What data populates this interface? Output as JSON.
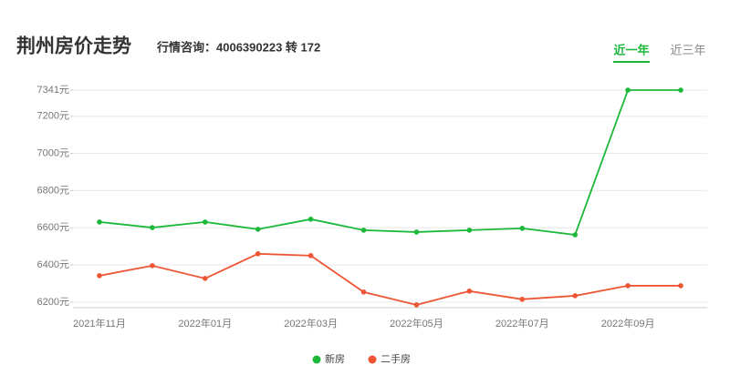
{
  "header": {
    "title": "荆州房价走势",
    "hotline": "行情咨询：4006390223 转 172"
  },
  "tabs": [
    "近一年",
    "近三年"
  ],
  "active_tab": 0,
  "chart_data": {
    "type": "line",
    "categories": [
      "2021年11月",
      null,
      "2022年01月",
      null,
      "2022年03月",
      null,
      "2022年05月",
      null,
      "2022年07月",
      null,
      "2022年09月",
      null
    ],
    "series": [
      {
        "name": "新房",
        "color": "#1cb83a",
        "values": [
          6631,
          6601,
          6631,
          6592,
          6646,
          6587,
          6577,
          6587,
          6597,
          6562,
          7341,
          7341
        ]
      },
      {
        "name": "二手房",
        "color": "#ee5534",
        "values": [
          6342,
          6396,
          6327,
          6460,
          6450,
          6254,
          6185,
          6259,
          6215,
          6234,
          6288,
          6288
        ]
      }
    ],
    "ylim": [
      6170,
      7341
    ],
    "yticks": [
      {
        "value": 6200,
        "label": "6200元"
      },
      {
        "value": 6400,
        "label": "6400元"
      },
      {
        "value": 6600,
        "label": "6600元"
      },
      {
        "value": 6800,
        "label": "6800元"
      },
      {
        "value": 7000,
        "label": "7000元"
      },
      {
        "value": 7200,
        "label": "7200元"
      },
      {
        "value": 7341,
        "label": "7341元"
      }
    ],
    "grid": true,
    "legend": "bottom"
  }
}
